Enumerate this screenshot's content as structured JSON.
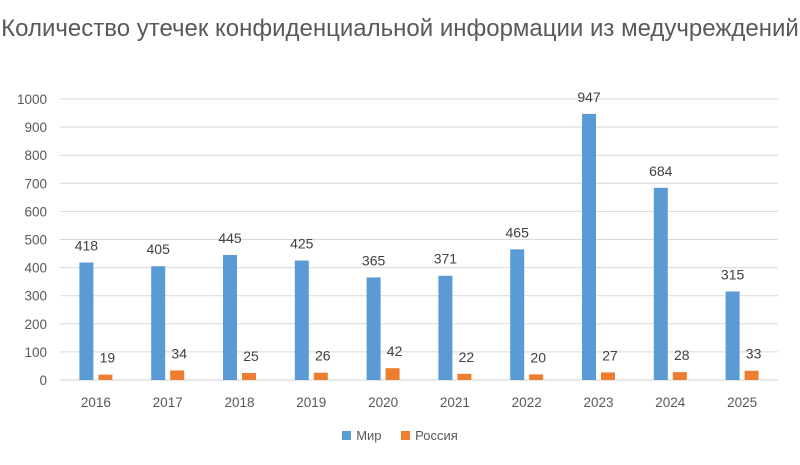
{
  "chart_data": {
    "type": "bar",
    "title": "Количество утечек конфиденциальной информации из медучреждений",
    "categories": [
      "2016",
      "2017",
      "2018",
      "2019",
      "2020",
      "2021",
      "2022",
      "2023",
      "2024",
      "2025"
    ],
    "series": [
      {
        "name": "Мир",
        "color": "#5B9BD5",
        "values": [
          418,
          405,
          445,
          425,
          365,
          371,
          465,
          947,
          684,
          315
        ]
      },
      {
        "name": "Россия",
        "color": "#ED7D31",
        "values": [
          19,
          34,
          25,
          26,
          42,
          22,
          20,
          27,
          28,
          33
        ]
      }
    ],
    "xlabel": "",
    "ylabel": "",
    "ylim": [
      0,
      1000
    ],
    "yticks": [
      0,
      100,
      200,
      300,
      400,
      500,
      600,
      700,
      800,
      900,
      1000
    ],
    "grid": true,
    "legend_position": "bottom"
  }
}
